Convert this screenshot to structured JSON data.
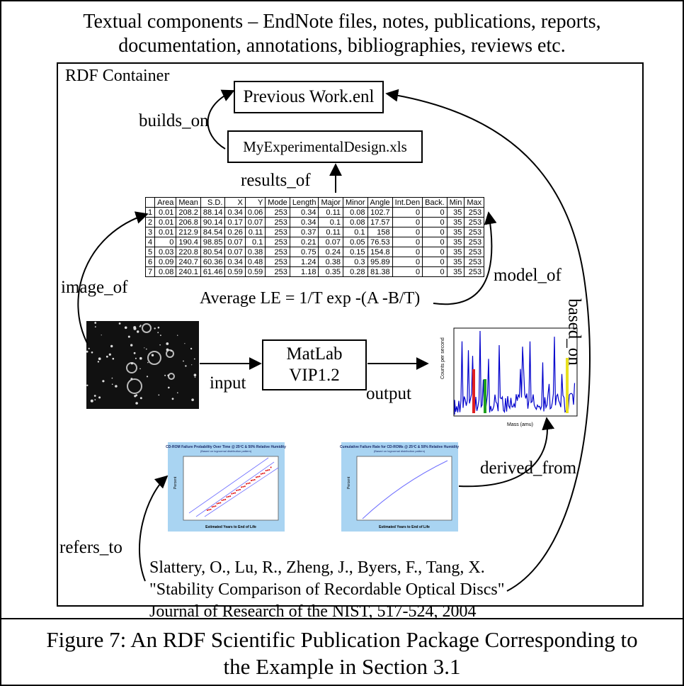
{
  "header": {
    "line1": "Textual components – EndNote files, notes, publications, reports,",
    "line2": "documentation, annotations, bibliographies, reviews etc."
  },
  "container": {
    "title": "RDF Container"
  },
  "nodes": {
    "previous_work": "Previous Work.enl",
    "experimental_design": "MyExperimentalDesign.xls",
    "matlab_line1": "MatLab",
    "matlab_line2": "VIP1.2",
    "formula": "Average LE =  1/T exp  -(A -B/T)"
  },
  "edges": {
    "builds_on": "builds_on",
    "results_of": "results_of",
    "image_of": "image_of",
    "model_of": "model_of",
    "based_on": "based_on",
    "input": "input",
    "output": "output",
    "derived_from": "derived_from",
    "refers_to": "refers_to"
  },
  "spreadsheet": {
    "headers": [
      "",
      "Area",
      "Mean",
      "S.D.",
      "X",
      "Y",
      "Mode",
      "Length",
      "Major",
      "Minor",
      "Angle",
      "Int.Den",
      "Back.",
      "Min",
      "Max"
    ],
    "rows": [
      [
        "1",
        "0.01",
        "208.2",
        "88.14",
        "0.34",
        "0.06",
        "253",
        "0.34",
        "0.11",
        "0.08",
        "102.7",
        "0",
        "0",
        "35",
        "253"
      ],
      [
        "2",
        "0.01",
        "206.8",
        "90.14",
        "0.17",
        "0.07",
        "253",
        "0.34",
        "0.1",
        "0.08",
        "17.57",
        "0",
        "0",
        "35",
        "253"
      ],
      [
        "3",
        "0.01",
        "212.9",
        "84.54",
        "0.26",
        "0.11",
        "253",
        "0.37",
        "0.11",
        "0.1",
        "158",
        "0",
        "0",
        "35",
        "253"
      ],
      [
        "4",
        "0",
        "190.4",
        "98.85",
        "0.07",
        "0.1",
        "253",
        "0.21",
        "0.07",
        "0.05",
        "76.53",
        "0",
        "0",
        "35",
        "253"
      ],
      [
        "5",
        "0.03",
        "220.8",
        "80.54",
        "0.07",
        "0.38",
        "253",
        "0.75",
        "0.24",
        "0.15",
        "154.8",
        "0",
        "0",
        "35",
        "253"
      ],
      [
        "6",
        "0.09",
        "240.7",
        "60.36",
        "0.34",
        "0.48",
        "253",
        "1.24",
        "0.38",
        "0.3",
        "95.89",
        "0",
        "0",
        "35",
        "253"
      ],
      [
        "7",
        "0.08",
        "240.1",
        "61.46",
        "0.59",
        "0.59",
        "253",
        "1.18",
        "0.35",
        "0.28",
        "81.38",
        "0",
        "0",
        "35",
        "253"
      ]
    ]
  },
  "chart1": {
    "title": "CD-ROM Failure Probability Over Time @ 25ºC & 50% Relative Humidity",
    "subtitle": "(Based on lognormal distribution pattern)",
    "ylabel": "Percent",
    "xlabel": "Estimated Years to End of Life",
    "background": "#a9d4f2"
  },
  "chart2": {
    "title": "Cumulative Failure Rate for CD-ROMs @ 25ºC & 50% Relative Humidity",
    "subtitle": "(Based on lognormal distribution pattern)",
    "ylabel": "Percent",
    "xlabel": "Estimated Years to End of Life",
    "background": "#a9d4f2"
  },
  "spectrum": {
    "ylabel": "Counts per second",
    "xlabel": "Mass (amu)"
  },
  "reference": {
    "line1": "Slattery, O., Lu, R., Zheng, J., Byers, F., Tang, X.",
    "line2": "\"Stability Comparison of Recordable Optical Discs\"",
    "line3": "Journal of Research of the NIST, 517-524, 2004"
  },
  "caption": {
    "line1": "Figure 7: An RDF Scientific Publication Package Corresponding to",
    "line2": "the Example in Section 3.1"
  }
}
